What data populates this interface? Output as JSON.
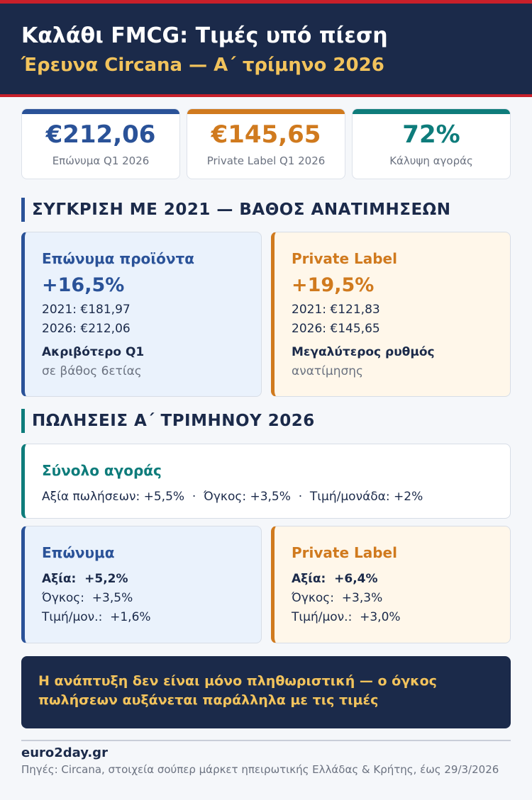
{
  "header": {
    "title": "Καλάθι FMCG: Τιμές υπό πίεση",
    "subtitle": "Έρευνα Circana — Α΄ τρίμηνο 2026"
  },
  "stats": [
    {
      "value": "€212,06",
      "label": "Επώνυμα Q1 2026"
    },
    {
      "value": "€145,65",
      "label": "Private Label Q1 2026"
    },
    {
      "value": "72%",
      "label": "Κάλυψη αγοράς"
    }
  ],
  "sections": [
    {
      "title": "ΣΥΓΚΡΙΣΗ ΜΕ 2021 — ΒΑΘΟΣ ΑΝΑΤΙΜΗΣΕΩΝ"
    },
    {
      "title": "ΠΩΛΗΣΕΙΣ Α΄ ΤΡΙΜΗΝΟΥ 2026"
    }
  ],
  "comparison": [
    {
      "title": "Επώνυμα προϊόντα",
      "change": "+16,5%",
      "lines": [
        "2021: €181,97",
        "2026: €212,06"
      ],
      "note_title": "Ακριβότερο Q1",
      "note": "σε βάθος 6ετίας"
    },
    {
      "title": "Private Label",
      "change": "+19,5%",
      "lines": [
        "2021: €121,83",
        "2026: €145,65"
      ],
      "note_title": "Μεγαλύτερος ρυθμός",
      "note": "ανατίμησης"
    }
  ],
  "market": {
    "title": "Σύνολο αγοράς",
    "line": "Αξία πωλήσεων: +5,5%  ·  Όγκος: +3,5%  ·  Τιμή/μονάδα: +2%"
  },
  "sales": [
    {
      "title": "Επώνυμα",
      "lines": [
        "Αξία:  +5,2%",
        "Όγκος:  +3,5%",
        "Τιμή/μον.:  +1,6%"
      ]
    },
    {
      "title": "Private Label",
      "lines": [
        "Αξία:  +6,4%",
        "Όγκος:  +3,3%",
        "Τιμή/μον.:  +3,0%"
      ]
    }
  ],
  "banner": {
    "text": "Η ανάπτυξη δεν είναι μόνο πληθωριστική — ο όγκος πωλήσεων αυξάνεται παράλληλα με τις τιμές"
  },
  "footer": {
    "site": "euro2day.gr",
    "source": "Πηγές: Circana, στοιχεία σούπερ μάρκετ ηπειρωτικής Ελλάδας & Κρήτης, έως 29/3/2026"
  }
}
